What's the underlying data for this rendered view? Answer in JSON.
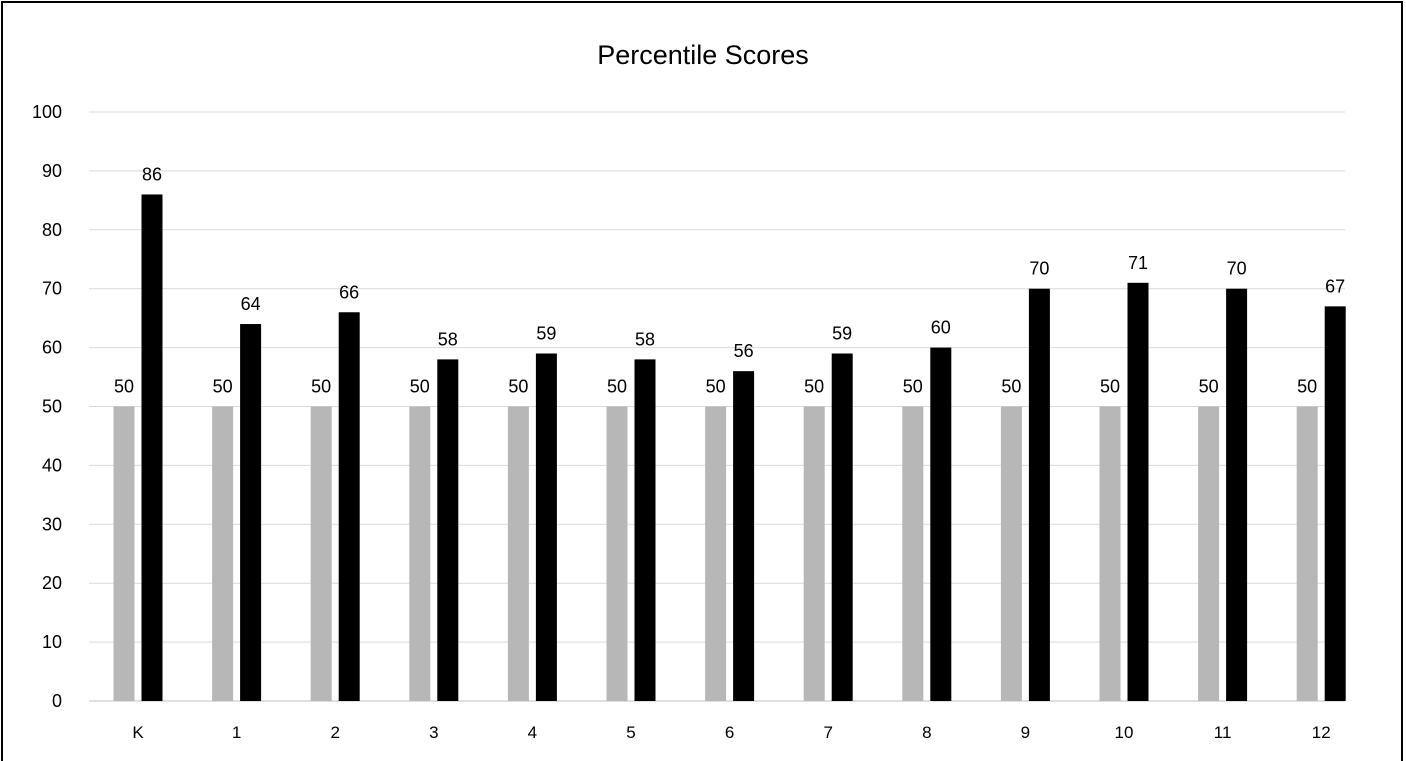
{
  "chart_data": {
    "type": "bar",
    "title": "Percentile Scores",
    "xlabel": "",
    "ylabel": "",
    "ylim": [
      0,
      100
    ],
    "yticks": [
      "0",
      "10",
      "20",
      "30",
      "40",
      "50",
      "60",
      "70",
      "80",
      "90",
      "100"
    ],
    "grid": true,
    "legend": "none",
    "categories": [
      "K",
      "1",
      "2",
      "3",
      "4",
      "5",
      "6",
      "7",
      "8",
      "9",
      "10",
      "11",
      "12"
    ],
    "series": [
      {
        "color": "#b7b7b7",
        "values": [
          50,
          50,
          50,
          50,
          50,
          50,
          50,
          50,
          50,
          50,
          50,
          50,
          50
        ]
      },
      {
        "color": "#000000",
        "values": [
          86,
          64,
          66,
          58,
          59,
          58,
          56,
          59,
          60,
          70,
          71,
          70,
          67
        ]
      }
    ]
  }
}
